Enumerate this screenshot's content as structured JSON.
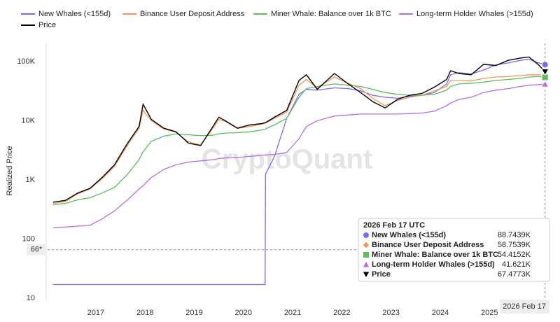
{
  "chart_data": {
    "type": "line",
    "y_label": "Realized Price",
    "watermark": "CryptoQuant",
    "log_y": true,
    "x": [
      2016.13,
      2016.38,
      2016.63,
      2016.88,
      2017.13,
      2017.38,
      2017.63,
      2017.88,
      2017.96,
      2018.13,
      2018.38,
      2018.63,
      2018.88,
      2019.13,
      2019.38,
      2019.5,
      2019.63,
      2019.88,
      2020.13,
      2020.38,
      2020.44,
      2020.45,
      2020.63,
      2020.88,
      2021.13,
      2021.28,
      2021.5,
      2021.85,
      2022.13,
      2022.38,
      2022.63,
      2022.88,
      2023.13,
      2023.38,
      2023.63,
      2023.88,
      2024.13,
      2024.21,
      2024.38,
      2024.63,
      2024.88,
      2025.13,
      2025.38,
      2025.63,
      2025.8,
      2026.0,
      2026.13
    ],
    "xlim": [
      2016.02,
      2026.22
    ],
    "xticks": [
      2017,
      2018,
      2019,
      2020,
      2021,
      2022,
      2023,
      2024,
      2025
    ],
    "ylim": [
      10,
      200000
    ],
    "yticks": [
      10,
      100,
      {
        "value": 1000,
        "label": "1K"
      },
      {
        "value": 10000,
        "label": "10K"
      },
      {
        "value": 100000,
        "label": "100K"
      }
    ],
    "reference_line": {
      "value": 66,
      "label": "66*"
    },
    "crosshair_label": "2026 Feb 17",
    "series": [
      {
        "name": "New Whales (<155d)",
        "color": "#7b68ee",
        "values": [
          17,
          17,
          17,
          17,
          17,
          17,
          17,
          17,
          17,
          17,
          17,
          17,
          17,
          17,
          17,
          17,
          17,
          17,
          17,
          17,
          17,
          1250,
          2500,
          11000,
          28000,
          34000,
          33000,
          36000,
          35000,
          32000,
          27000,
          25000,
          24000,
          26000,
          27000,
          30000,
          42000,
          60000,
          65000,
          62000,
          72000,
          88000,
          95000,
          105000,
          110000,
          95000,
          88743.9
        ]
      },
      {
        "name": "Binance User Deposit Address",
        "color": "#f0965a",
        "values": [
          400,
          430,
          580,
          700,
          1050,
          1700,
          3700,
          7500,
          15000,
          10000,
          7300,
          6400,
          4400,
          3900,
          7500,
          10500,
          9800,
          7400,
          8000,
          8800,
          9100,
          9100,
          11000,
          14000,
          40000,
          50000,
          36000,
          55000,
          43000,
          35000,
          24000,
          18000,
          22000,
          25000,
          27000,
          32000,
          38000,
          48000,
          48000,
          47000,
          52000,
          55000,
          56000,
          58000,
          60000,
          60000,
          58753.9
        ]
      },
      {
        "name": "Miner Whale: Balance over 1k BTC",
        "color": "#5bbd5b",
        "values": [
          380,
          400,
          460,
          500,
          600,
          750,
          1200,
          2200,
          3000,
          4500,
          5500,
          6000,
          5800,
          5600,
          5700,
          6000,
          6200,
          6300,
          6500,
          7000,
          7200,
          7300,
          8500,
          11000,
          25000,
          35000,
          38000,
          42000,
          40000,
          38000,
          34000,
          30000,
          28000,
          27000,
          27000,
          28000,
          33000,
          38000,
          42000,
          43000,
          45000,
          48000,
          50000,
          52000,
          55000,
          56000,
          54415.2
        ]
      },
      {
        "name": "Long-term Holder Whales (>155d)",
        "color": "#b96ee0",
        "values": [
          155,
          160,
          165,
          170,
          220,
          300,
          450,
          700,
          800,
          1100,
          1500,
          1800,
          2000,
          2100,
          2200,
          2300,
          2350,
          2400,
          2500,
          2600,
          2650,
          2650,
          2700,
          2900,
          5000,
          8000,
          10000,
          12000,
          12500,
          13000,
          13000,
          13000,
          13000,
          13200,
          13500,
          14500,
          18000,
          20000,
          23000,
          25000,
          30000,
          33000,
          35000,
          38000,
          40000,
          41000,
          41621
        ]
      },
      {
        "name": "Price",
        "color": "#000000",
        "values": [
          420,
          450,
          600,
          720,
          1100,
          1800,
          4000,
          8000,
          19000,
          10500,
          7500,
          6500,
          4200,
          3800,
          8000,
          11500,
          10000,
          7500,
          8500,
          9000,
          9300,
          9300,
          11500,
          15000,
          48000,
          60000,
          34000,
          63000,
          42000,
          30000,
          21000,
          16500,
          23000,
          27000,
          29000,
          37000,
          50000,
          70000,
          63000,
          60000,
          90000,
          86000,
          105000,
          115000,
          120000,
          88000,
          67477.3
        ]
      }
    ],
    "tooltip": {
      "title": "2026 Feb 17 UTC",
      "labels": [
        "88.7439K",
        "58.7539K",
        "54.4152K",
        "41.621K",
        "67.4773K"
      ]
    }
  }
}
